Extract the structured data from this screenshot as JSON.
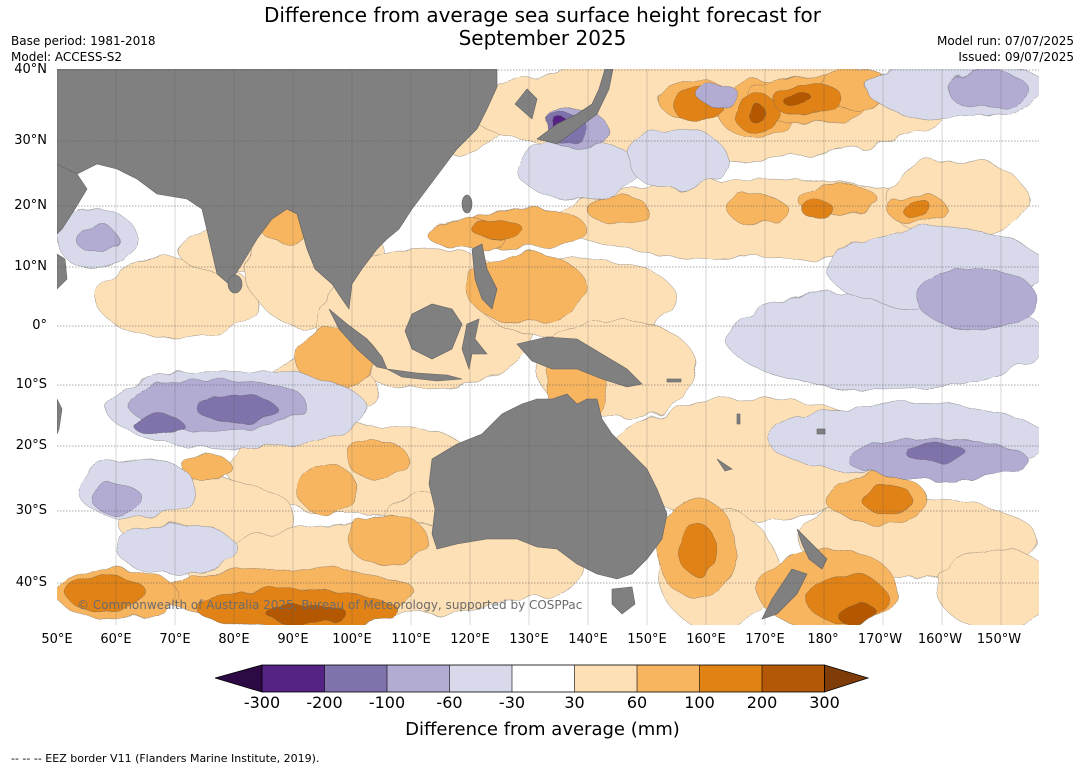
{
  "title": {
    "line1": "Difference from average sea surface height forecast for",
    "line2": "September 2025"
  },
  "meta": {
    "base_period": "Base period: 1981-2018",
    "model": "Model: ACCESS-S2",
    "model_run": "Model run: 07/07/2025",
    "issued": "Issued: 09/07/2025"
  },
  "map": {
    "land_color": "#808080",
    "latitude_labels": [
      "40°N",
      "30°N",
      "20°N",
      "10°N",
      "0°",
      "10°S",
      "20°S",
      "30°S",
      "40°S"
    ],
    "longitude_labels": [
      "50°E",
      "60°E",
      "70°E",
      "80°E",
      "90°E",
      "100°E",
      "110°E",
      "120°E",
      "130°E",
      "140°E",
      "150°E",
      "160°E",
      "170°E",
      "180°",
      "170°W",
      "160°W",
      "150°W"
    ],
    "copyright": "© Commonwealth of Australia 2025, Bureau of Meteorology, supported by COSPPac"
  },
  "colorbar": {
    "title": "Difference from average (mm)",
    "ticks": [
      "-300",
      "-200",
      "-100",
      "-60",
      "-30",
      "30",
      "60",
      "100",
      "200",
      "300"
    ],
    "colors": {
      "below_-300": "#2d0a45",
      "-300_to_-200": "#552383",
      "-200_to_-100": "#8073ac",
      "-100_to_-60": "#b2abd2",
      "-60_to_-30": "#d8daeb",
      "-30_to_30": "#ffffff",
      "30_to_60": "#fee0b6",
      "60_to_100": "#f8b560",
      "100_to_200": "#e08214",
      "200_to_300": "#b35806",
      "above_300": "#7f3b08"
    }
  },
  "footer": {
    "eez_note": "--  --  -- EEZ border V11 (Flanders Marine Institute, 2019)."
  }
}
